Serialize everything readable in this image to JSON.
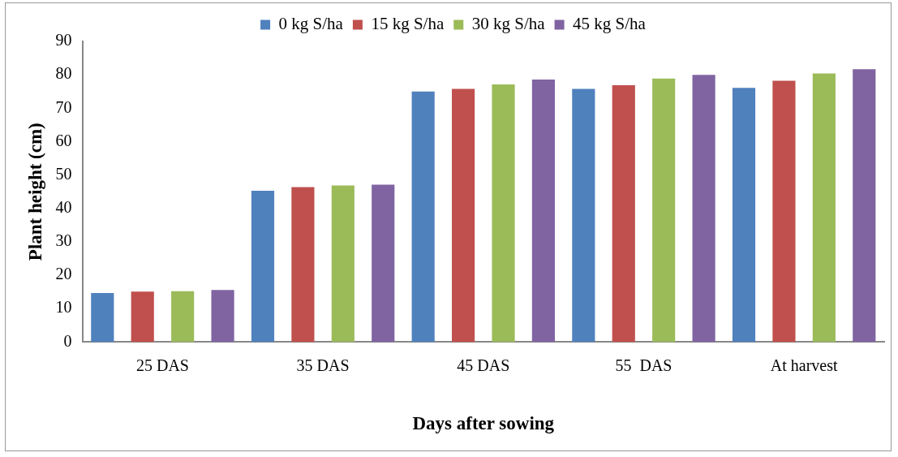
{
  "chart_data": {
    "type": "bar",
    "xlabel": "Days after sowing",
    "ylabel": "Plant height (cm)",
    "categories": [
      "25 DAS",
      "35 DAS",
      "45 DAS",
      "55  DAS",
      "At harvest"
    ],
    "series": [
      {
        "name": "0 kg S/ha",
        "color": "#4f81bd",
        "values": [
          14.7,
          45.3,
          75.0,
          75.8,
          76.1
        ]
      },
      {
        "name": "15 kg S/ha",
        "color": "#c0504d",
        "values": [
          15.1,
          46.4,
          75.8,
          76.9,
          78.2
        ]
      },
      {
        "name": "30 kg S/ha",
        "color": "#9bbb59",
        "values": [
          15.2,
          46.9,
          77.1,
          78.9,
          80.4
        ]
      },
      {
        "name": "45 kg S/ha",
        "color": "#8064a2",
        "values": [
          15.6,
          47.1,
          78.6,
          80.0,
          81.7
        ]
      }
    ],
    "ylim": [
      0,
      90
    ],
    "yticks": [
      0,
      10,
      20,
      30,
      40,
      50,
      60,
      70,
      80,
      90
    ],
    "grid": false,
    "legend": "top"
  }
}
